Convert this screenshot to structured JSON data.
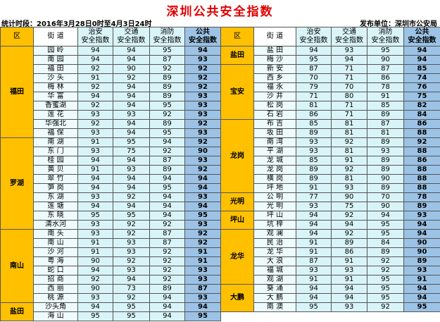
{
  "header": {
    "title": "深圳公共安全指数",
    "period": "统计时段：2016年3月28日0时至4月3日24时",
    "publisher": "发布单位：深圳市公安局"
  },
  "columns": [
    "区",
    "街 道",
    "治安\n安全指数",
    "交通\n安全指数",
    "消防\n安全指数",
    "公共\n安全指数"
  ],
  "tables": [
    {
      "groups": [
        {
          "district": "福田",
          "rows": [
            [
              "园 岭",
              94,
              94,
              95,
              94
            ],
            [
              "南 园",
              94,
              94,
              87,
              93
            ],
            [
              "福 田",
              92,
              90,
              92,
              92
            ],
            [
              "沙 头",
              91,
              92,
              89,
              92
            ],
            [
              "梅 林",
              92,
              94,
              89,
              92
            ],
            [
              "华 富",
              94,
              94,
              89,
              93
            ],
            [
              "香蜜湖",
              92,
              94,
              95,
              93
            ],
            [
              "莲 花",
              93,
              93,
              92,
              93
            ],
            [
              "华强北",
              92,
              94,
              89,
              92
            ],
            [
              "福 保",
              93,
              94,
              95,
              93
            ]
          ]
        },
        {
          "district": "罗湖",
          "rows": [
            [
              "南 湖",
              91,
              95,
              94,
              92
            ],
            [
              "东 门",
              93,
              75,
              92,
              90
            ],
            [
              "桂 园",
              94,
              94,
              87,
              93
            ],
            [
              "黄 贝",
              91,
              93,
              89,
              92
            ],
            [
              "翠 竹",
              94,
              94,
              94,
              94
            ],
            [
              "笋 岗",
              94,
              94,
              95,
              94
            ],
            [
              "东 湖",
              93,
              92,
              94,
              93
            ],
            [
              "莲 塘",
              94,
              94,
              94,
              94
            ],
            [
              "东 晓",
              95,
              95,
              94,
              95
            ],
            [
              "清水河",
              93,
              92,
              92,
              93
            ]
          ]
        },
        {
          "district": "南山",
          "rows": [
            [
              "南 头",
              93,
              92,
              87,
              92
            ],
            [
              "南 山",
              91,
              93,
              87,
              92
            ],
            [
              "沙 河",
              91,
              93,
              92,
              91
            ],
            [
              "粤 海",
              90,
              92,
              92,
              91
            ],
            [
              "蛇 口",
              94,
              93,
              92,
              93
            ],
            [
              "招 商",
              92,
              94,
              92,
              93
            ],
            [
              "西 丽",
              90,
              73,
              89,
              87
            ],
            [
              "桃 源",
              93,
              92,
              94,
              93
            ]
          ]
        },
        {
          "district": "盐田",
          "rows": [
            [
              "沙头角",
              94,
              95,
              94,
              94
            ],
            [
              "海 山",
              95,
              95,
              94,
              95
            ]
          ]
        }
      ]
    },
    {
      "groups": [
        {
          "district": "盐田",
          "rows": [
            [
              "盐 田",
              94,
              93,
              95,
              94
            ],
            [
              "梅 沙",
              95,
              94,
              90,
              94
            ]
          ]
        },
        {
          "district": "宝安",
          "rows": [
            [
              "新 安",
              87,
              71,
              87,
              85
            ],
            [
              "西 乡",
              70,
              71,
              86,
              74
            ],
            [
              "福 永",
              79,
              70,
              78,
              76
            ],
            [
              "沙 井",
              71,
              80,
              91,
              75
            ],
            [
              "松 岗",
              81,
              71,
              85,
              82
            ],
            [
              "石 岩",
              86,
              71,
              89,
              84
            ]
          ]
        },
        {
          "district": "龙岗",
          "rows": [
            [
              "布 吉",
              85,
              81,
              87,
              86
            ],
            [
              "坂 田",
              89,
              81,
              81,
              88
            ],
            [
              "南 湾",
              93,
              92,
              89,
              92
            ],
            [
              "平 湖",
              93,
              81,
              93,
              88
            ],
            [
              "龙 城",
              85,
              91,
              89,
              86
            ],
            [
              "龙 岗",
              89,
              92,
              89,
              88
            ],
            [
              "横 岗",
              89,
              81,
              90,
              88
            ],
            [
              "坪 地",
              91,
              93,
              89,
              88
            ]
          ]
        },
        {
          "district": "光明",
          "rows": [
            [
              "公 明",
              77,
              90,
              70,
              78
            ],
            [
              "光 明",
              93,
              75,
              90,
              89
            ]
          ]
        },
        {
          "district": "坪山",
          "rows": [
            [
              "坪 山",
              94,
              92,
              94,
              93
            ],
            [
              "坑 梓",
              94,
              94,
              95,
              94
            ]
          ]
        },
        {
          "district": "龙华",
          "rows": [
            [
              "观 澜",
              94,
              92,
              95,
              94
            ],
            [
              "民 治",
              91,
              89,
              84,
              90
            ],
            [
              "龙 华",
              91,
              86,
              89,
              90
            ],
            [
              "大 浪",
              87,
              91,
              92,
              89
            ],
            [
              "福 城",
              93,
              93,
              92,
              93
            ],
            [
              "观 湖",
              91,
              91,
              95,
              91
            ]
          ]
        },
        {
          "district": "大鹏",
          "rows": [
            [
              "葵 涌",
              94,
              94,
              95,
              94
            ],
            [
              "大 鹏",
              94,
              94,
              95,
              94
            ],
            [
              "南 澳",
              95,
              93,
              92,
              95
            ]
          ]
        }
      ]
    }
  ]
}
